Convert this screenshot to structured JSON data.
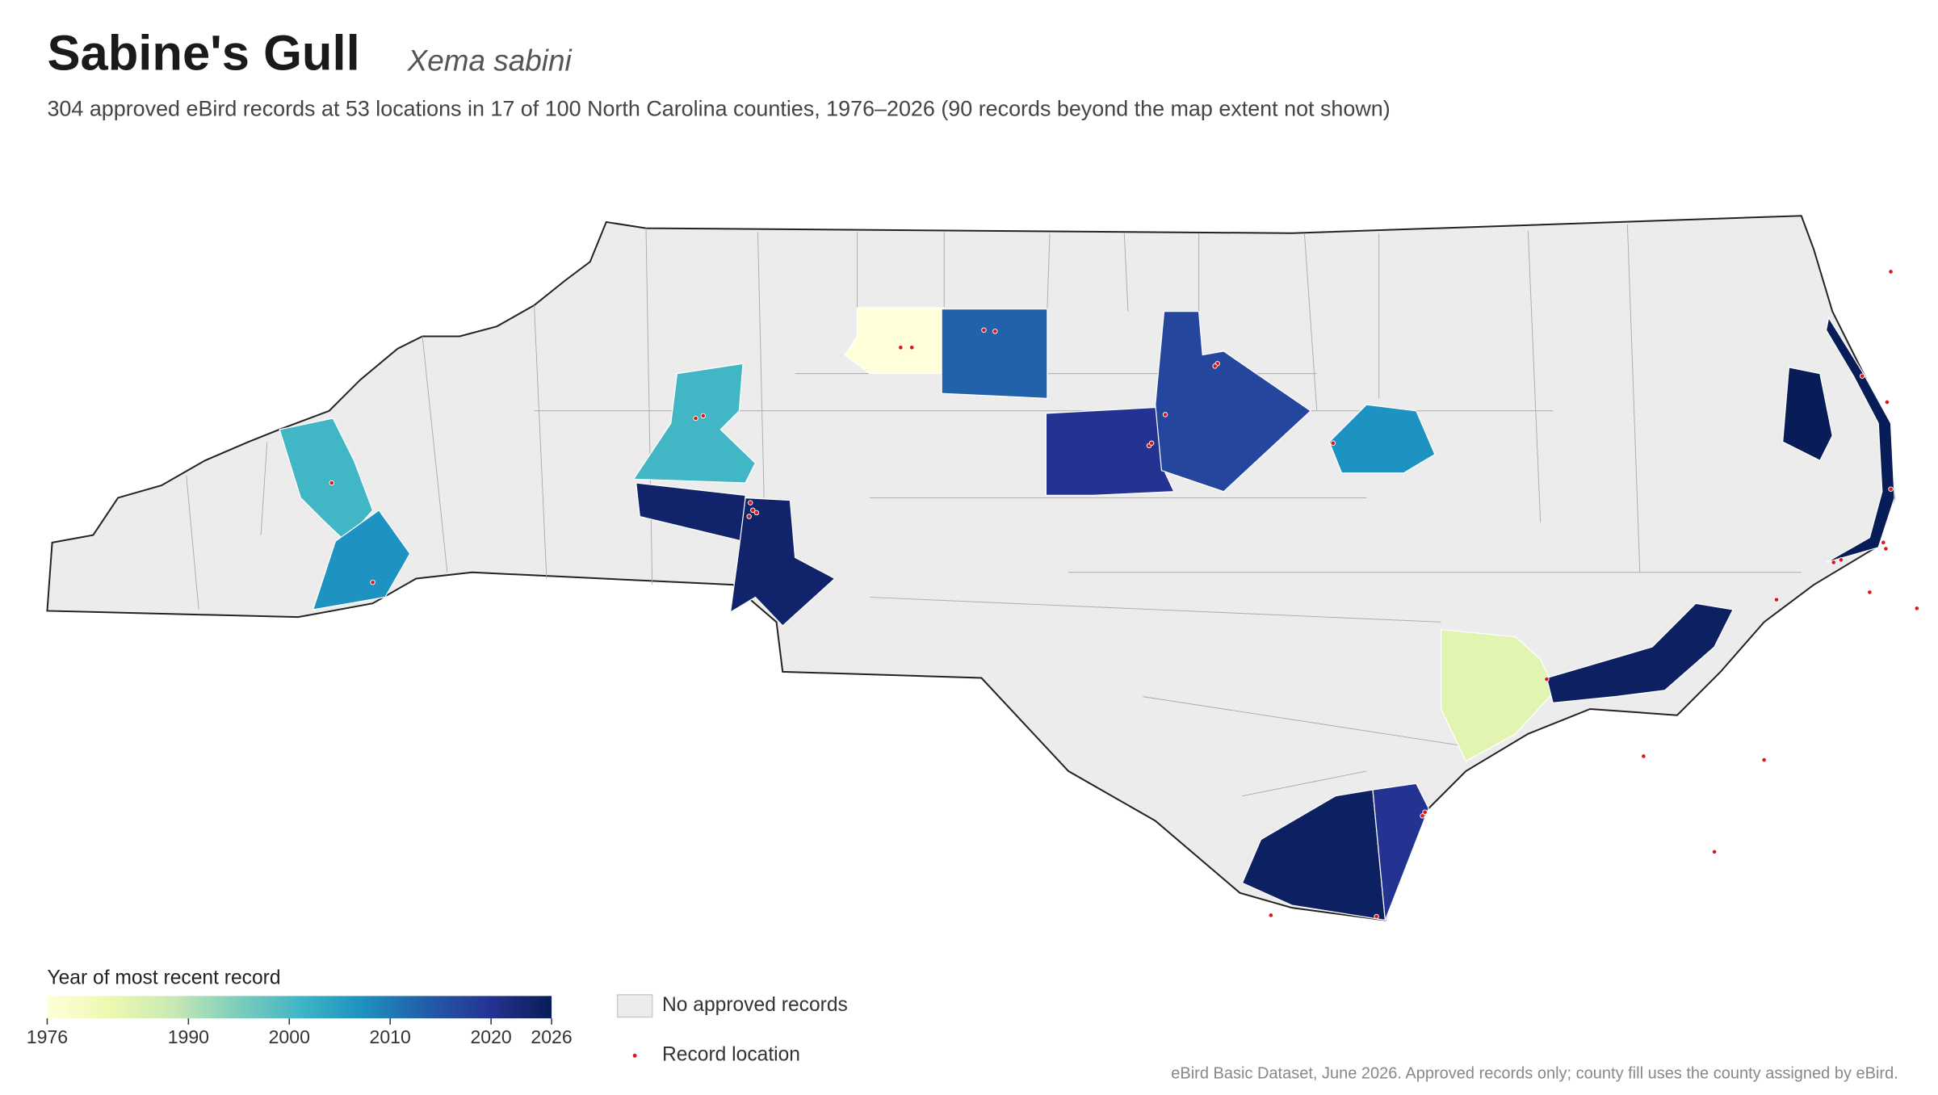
{
  "header": {
    "title": "Sabine's Gull",
    "scientific_name": "Xema sabini",
    "subtitle": "304 approved eBird records at 53 locations in 17 of 100 North Carolina counties, 1976–2026 (90 records beyond the map extent not shown)"
  },
  "map": {
    "type": "choropleth",
    "colormap": [
      "#ffffd9",
      "#edf8b1",
      "#c7e9b4",
      "#7fcdbb",
      "#41b6c4",
      "#1d91c0",
      "#225ea8",
      "#253494",
      "#081d58"
    ],
    "no_data_color": "#ececec",
    "record_color": "#d7191c",
    "counties": [
      {
        "year": 1976
      },
      {
        "year": 2013
      },
      {
        "year": 2020
      },
      {
        "year": 2017
      },
      {
        "year": 2007
      },
      {
        "year": 2001
      },
      {
        "year": 2001
      },
      {
        "year": 2007
      },
      {
        "year": 2024
      },
      {
        "year": 2024
      },
      {
        "year": 1984
      },
      {
        "year": 2025
      },
      {
        "year": 2026
      },
      {
        "year": 2025
      },
      {
        "year": 2020
      }
    ]
  },
  "legend": {
    "title": "Year of most recent record",
    "range": [
      1976,
      2026
    ],
    "ticks": [
      1976,
      1990,
      2000,
      2010,
      2020,
      2026
    ],
    "no_data_label": "No approved records",
    "record_label": "Record location"
  },
  "footnote": "eBird Basic Dataset, June 2026. Approved records only; county fill uses the county assigned by eBird."
}
